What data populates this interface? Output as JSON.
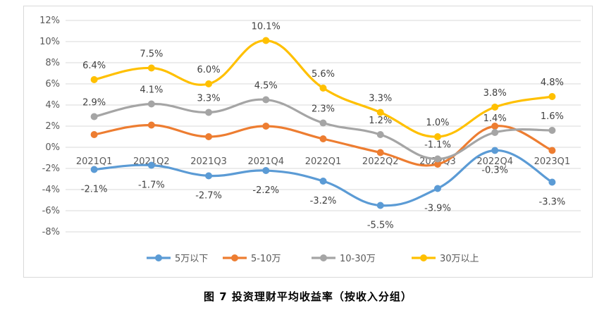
{
  "caption": "图 7 投资理财平均收益率（按收入分组）",
  "chart_data": {
    "type": "line",
    "smooth": true,
    "categories": [
      "2021Q1",
      "2021Q2",
      "2021Q3",
      "2021Q4",
      "2022Q1",
      "2022Q2",
      "2022Q3",
      "2022Q4",
      "2023Q1"
    ],
    "ylim": [
      -8,
      12
    ],
    "yticks": [
      "-8%",
      "-6%",
      "-4%",
      "-2%",
      "0%",
      "2%",
      "4%",
      "6%",
      "8%",
      "10%",
      "12%"
    ],
    "grid": true,
    "legend_position": "bottom",
    "series": [
      {
        "name": "5万以下",
        "color": "#5b9bd5",
        "values": [
          -2.1,
          -1.7,
          -2.7,
          -2.2,
          -3.2,
          -5.5,
          -3.9,
          -0.3,
          -3.3
        ],
        "labels": [
          "-2.1%",
          "-1.7%",
          "-2.7%",
          "-2.2%",
          "-3.2%",
          "-5.5%",
          "-3.9%",
          "-0.3%",
          "-3.3%"
        ]
      },
      {
        "name": "5-10万",
        "color": "#ed7d31",
        "values": [
          1.2,
          2.1,
          1.0,
          2.0,
          0.8,
          -0.5,
          -1.6,
          2.0,
          -0.3
        ],
        "labels": []
      },
      {
        "name": "10-30万",
        "color": "#a5a5a5",
        "values": [
          2.9,
          4.1,
          3.3,
          4.5,
          2.3,
          1.2,
          -1.1,
          1.4,
          1.6
        ],
        "labels": [
          "2.9%",
          "4.1%",
          "3.3%",
          "4.5%",
          "2.3%",
          "1.2%",
          "-1.1%",
          "1.4%",
          "1.6%"
        ]
      },
      {
        "name": "30万以上",
        "color": "#ffc000",
        "values": [
          6.4,
          7.5,
          6.0,
          10.1,
          5.6,
          3.3,
          1.0,
          3.8,
          4.8
        ],
        "labels": [
          "6.4%",
          "7.5%",
          "6.0%",
          "10.1%",
          "5.6%",
          "3.3%",
          "1.0%",
          "3.8%",
          "4.8%"
        ]
      }
    ]
  }
}
